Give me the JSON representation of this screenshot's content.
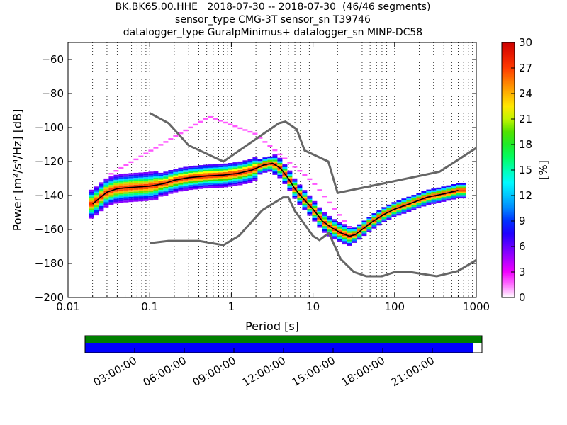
{
  "title_lines": [
    "BK.BK65.00.HHE   2018-07-30 -- 2018-07-30  (46/46 segments)",
    "sensor_type CMG-3T sensor_sn T39746",
    "datalogger_type GuralpMinimus+ datalogger_sn MINP-DC58"
  ],
  "chart_data": [
    {
      "type": "heatmap",
      "subtype": "probabilistic power spectral density",
      "xlabel": "Period [s]",
      "ylabel": "Power [m²/s⁴/Hz] [dB]",
      "x_scale": "log",
      "xlim": [
        0.01,
        1000
      ],
      "ylim": [
        -200,
        -50
      ],
      "x_ticks": [
        0.01,
        0.1,
        1,
        10,
        100,
        1000
      ],
      "x_tick_labels": [
        "0.01",
        "0.1",
        "1",
        "10",
        "100",
        "1000"
      ],
      "y_ticks": [
        -200,
        -180,
        -160,
        -140,
        -120,
        -100,
        -80,
        -60
      ],
      "y_tick_labels": [
        "−200",
        "−180",
        "−160",
        "−140",
        "−120",
        "−100",
        "−80",
        "−60"
      ],
      "grid": "dotted vertical lines at decade subdivisions",
      "colorbar": {
        "label": "[%]",
        "range": [
          0,
          30
        ],
        "ticks": [
          "0",
          "3",
          "6",
          "9",
          "12",
          "15",
          "18",
          "21",
          "24",
          "27",
          "30"
        ],
        "colors": [
          "#ffffff",
          "#ff00ff",
          "#7f00ff",
          "#0000ff",
          "#00a0ff",
          "#00ffff",
          "#00ff66",
          "#33dd00",
          "#ffff00",
          "#ffa000",
          "#ff3000",
          "#cc0000"
        ]
      },
      "noise_models": [
        {
          "name": "NHNM",
          "color": "#666666",
          "points": [
            [
              0.1,
              -91.5
            ],
            [
              0.17,
              -97.4
            ],
            [
              0.3,
              -110.5
            ],
            [
              0.8,
              -120
            ],
            [
              3.8,
              -97.5
            ],
            [
              4.6,
              -96.5
            ],
            [
              6.3,
              -101
            ],
            [
              7.9,
              -113.5
            ],
            [
              15.4,
              -120
            ],
            [
              20,
              -138.5
            ],
            [
              354.8,
              -126
            ],
            [
              1000,
              -112
            ]
          ]
        },
        {
          "name": "NLNM",
          "color": "#666666",
          "points": [
            [
              0.1,
              -168
            ],
            [
              0.17,
              -166.7
            ],
            [
              0.4,
              -166.7
            ],
            [
              0.8,
              -169.2
            ],
            [
              1.24,
              -163.7
            ],
            [
              2.4,
              -148.6
            ],
            [
              4.3,
              -141.1
            ],
            [
              5,
              -141.1
            ],
            [
              6,
              -149
            ],
            [
              10,
              -163.8
            ],
            [
              12,
              -166.2
            ],
            [
              15.6,
              -162.1
            ],
            [
              21.9,
              -177.5
            ],
            [
              31.6,
              -185
            ],
            [
              45,
              -187.5
            ],
            [
              70,
              -187.5
            ],
            [
              101,
              -185
            ],
            [
              154,
              -185
            ],
            [
              328,
              -187.5
            ],
            [
              600,
              -184.4
            ],
            [
              1000,
              -178
            ]
          ]
        }
      ],
      "mode_curve": [
        [
          0.02,
          -145
        ],
        [
          0.025,
          -141
        ],
        [
          0.03,
          -138
        ],
        [
          0.04,
          -136
        ],
        [
          0.05,
          -135.5
        ],
        [
          0.07,
          -135
        ],
        [
          0.1,
          -134.5
        ],
        [
          0.15,
          -133
        ],
        [
          0.2,
          -131
        ],
        [
          0.3,
          -129.5
        ],
        [
          0.5,
          -128.5
        ],
        [
          0.8,
          -128
        ],
        [
          1.2,
          -127
        ],
        [
          1.8,
          -125
        ],
        [
          2.5,
          -122
        ],
        [
          3.2,
          -121
        ],
        [
          4,
          -124
        ],
        [
          5,
          -130
        ],
        [
          6,
          -136
        ],
        [
          7,
          -140
        ],
        [
          8,
          -143
        ],
        [
          10,
          -148
        ],
        [
          13,
          -155
        ],
        [
          17,
          -159
        ],
        [
          22,
          -162
        ],
        [
          28,
          -164
        ],
        [
          33,
          -163
        ],
        [
          40,
          -160
        ],
        [
          55,
          -155
        ],
        [
          75,
          -151
        ],
        [
          100,
          -148
        ],
        [
          150,
          -145
        ],
        [
          250,
          -141
        ],
        [
          400,
          -139
        ],
        [
          600,
          -137
        ]
      ],
      "time_coverage": {
        "tick_labels": [
          "03:00:00",
          "06:00:00",
          "09:00:00",
          "12:00:00",
          "15:00:00",
          "18:00:00",
          "21:00:00"
        ],
        "coverage_fraction": 0.977,
        "colors": {
          "data_bar": "#008000",
          "processed_bar": "#0000ff"
        }
      }
    }
  ]
}
